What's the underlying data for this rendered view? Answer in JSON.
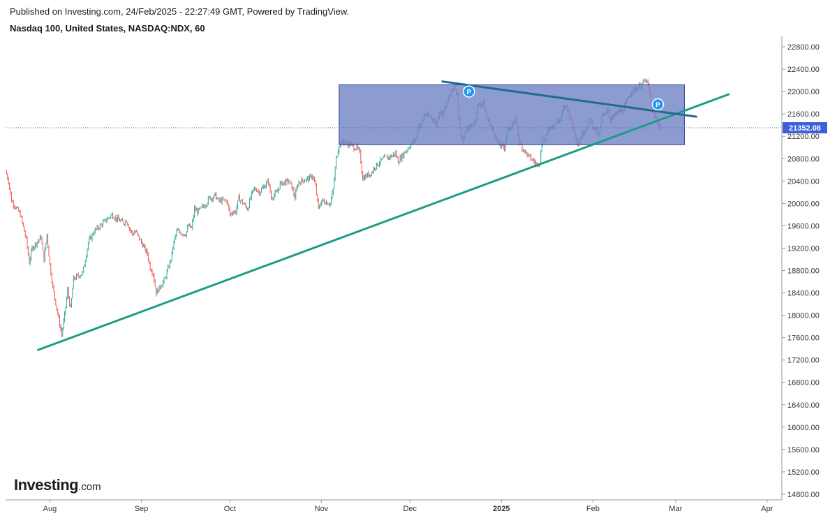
{
  "header": {
    "published": "Published on Investing.com, 24/Feb/2025 - 22:27:49 GMT, Powered by TradingView.",
    "symbol": "Nasdaq 100, United States, NASDAQ:NDX, 60"
  },
  "logo": {
    "main": "Investing",
    "suffix": ".com"
  },
  "colors": {
    "up": "#26a69a",
    "down": "#ef5350",
    "range_box_fill": "#6f83c6",
    "range_box_stroke": "#2d3f8e",
    "support_line": "#1a9b82",
    "resistance_line": "#1f6b8c",
    "price_label": "#3d5fd9",
    "pivot_marker": "#2196f3"
  },
  "chart_data": {
    "type": "candlestick",
    "title": "Nasdaq 100, United States, NASDAQ:NDX, 60",
    "y_ticks": [
      14800,
      15200,
      15600,
      16000,
      16400,
      16800,
      17200,
      17600,
      18000,
      18400,
      18800,
      19200,
      19600,
      20000,
      20400,
      20800,
      21200,
      21600,
      22000,
      22400,
      22800
    ],
    "y_tick_labels": [
      "14800.00",
      "15200.00",
      "15600.00",
      "16000.00",
      "16400.00",
      "16800.00",
      "17200.00",
      "17600.00",
      "18000.00",
      "18400.00",
      "18800.00",
      "19200.00",
      "19600.00",
      "20000.00",
      "20400.00",
      "20800.00",
      "21200.00",
      "21600.00",
      "22000.00",
      "22400.00",
      "22800.00"
    ],
    "ylim": [
      14700,
      22950
    ],
    "x_ticks": [
      {
        "label": "Aug",
        "date": "2024-08-01",
        "bold": false
      },
      {
        "label": "Sep",
        "date": "2024-09-01",
        "bold": false
      },
      {
        "label": "Oct",
        "date": "2024-10-01",
        "bold": false
      },
      {
        "label": "Nov",
        "date": "2024-11-01",
        "bold": false
      },
      {
        "label": "Dec",
        "date": "2024-12-01",
        "bold": false
      },
      {
        "label": "2025",
        "date": "2025-01-01",
        "bold": true
      },
      {
        "label": "Feb",
        "date": "2025-02-01",
        "bold": false
      },
      {
        "label": "Mar",
        "date": "2025-03-01",
        "bold": false
      },
      {
        "label": "Apr",
        "date": "2025-04-01",
        "bold": false
      }
    ],
    "xlim": [
      "2024-07-17",
      "2025-04-06"
    ],
    "last_price": 21352.08,
    "last_price_label": "21352.08",
    "price_path": [
      [
        "2024-07-17",
        20580
      ],
      [
        "2024-07-18",
        20400
      ],
      [
        "2024-07-19",
        20050
      ],
      [
        "2024-07-22",
        19800
      ],
      [
        "2024-07-24",
        19350
      ],
      [
        "2024-07-25",
        18950
      ],
      [
        "2024-07-26",
        19200
      ],
      [
        "2024-07-29",
        19400
      ],
      [
        "2024-07-30",
        19000
      ],
      [
        "2024-07-31",
        19450
      ],
      [
        "2024-08-01",
        18900
      ],
      [
        "2024-08-02",
        18500
      ],
      [
        "2024-08-05",
        17650
      ],
      [
        "2024-08-06",
        18000
      ],
      [
        "2024-08-07",
        18450
      ],
      [
        "2024-08-08",
        18100
      ],
      [
        "2024-08-09",
        18650
      ],
      [
        "2024-08-12",
        18750
      ],
      [
        "2024-08-13",
        19000
      ],
      [
        "2024-08-14",
        19300
      ],
      [
        "2024-08-16",
        19500
      ],
      [
        "2024-08-19",
        19650
      ],
      [
        "2024-08-20",
        19700
      ],
      [
        "2024-08-22",
        19800
      ],
      [
        "2024-08-23",
        19750
      ],
      [
        "2024-08-26",
        19650
      ],
      [
        "2024-08-27",
        19700
      ],
      [
        "2024-08-28",
        19550
      ],
      [
        "2024-08-29",
        19450
      ],
      [
        "2024-08-30",
        19500
      ],
      [
        "2024-09-03",
        19100
      ],
      [
        "2024-09-04",
        18850
      ],
      [
        "2024-09-05",
        18750
      ],
      [
        "2024-09-06",
        18400
      ],
      [
        "2024-09-09",
        18650
      ],
      [
        "2024-09-11",
        19000
      ],
      [
        "2024-09-12",
        19300
      ],
      [
        "2024-09-13",
        19500
      ],
      [
        "2024-09-16",
        19450
      ],
      [
        "2024-09-17",
        19600
      ],
      [
        "2024-09-18",
        19550
      ],
      [
        "2024-09-19",
        19900
      ],
      [
        "2024-09-20",
        19850
      ],
      [
        "2024-09-23",
        20000
      ],
      [
        "2024-09-24",
        20100
      ],
      [
        "2024-09-25",
        20100
      ],
      [
        "2024-09-26",
        20150
      ],
      [
        "2024-09-27",
        20050
      ],
      [
        "2024-09-30",
        20050
      ],
      [
        "2024-10-01",
        19800
      ],
      [
        "2024-10-02",
        19850
      ],
      [
        "2024-10-03",
        19850
      ],
      [
        "2024-10-04",
        20100
      ],
      [
        "2024-10-07",
        19900
      ],
      [
        "2024-10-08",
        20100
      ],
      [
        "2024-10-09",
        20250
      ],
      [
        "2024-10-10",
        20250
      ],
      [
        "2024-10-11",
        20200
      ],
      [
        "2024-10-14",
        20400
      ],
      [
        "2024-10-15",
        20100
      ],
      [
        "2024-10-16",
        20150
      ],
      [
        "2024-10-17",
        20200
      ],
      [
        "2024-10-18",
        20350
      ],
      [
        "2024-10-21",
        20400
      ],
      [
        "2024-10-22",
        20300
      ],
      [
        "2024-10-23",
        20100
      ],
      [
        "2024-10-24",
        20350
      ],
      [
        "2024-10-25",
        20400
      ],
      [
        "2024-10-28",
        20450
      ],
      [
        "2024-10-29",
        20500
      ],
      [
        "2024-10-30",
        20300
      ],
      [
        "2024-10-31",
        19900
      ],
      [
        "2024-11-01",
        20050
      ],
      [
        "2024-11-04",
        20000
      ],
      [
        "2024-11-05",
        20250
      ],
      [
        "2024-11-06",
        20800
      ],
      [
        "2024-11-07",
        21050
      ],
      [
        "2024-11-08",
        21100
      ],
      [
        "2024-11-11",
        21050
      ],
      [
        "2024-11-12",
        21000
      ],
      [
        "2024-11-13",
        21000
      ],
      [
        "2024-11-14",
        20900
      ],
      [
        "2024-11-15",
        20450
      ],
      [
        "2024-11-18",
        20550
      ],
      [
        "2024-11-19",
        20650
      ],
      [
        "2024-11-20",
        20700
      ],
      [
        "2024-11-21",
        20750
      ],
      [
        "2024-11-22",
        20800
      ],
      [
        "2024-11-25",
        20850
      ],
      [
        "2024-11-26",
        20900
      ],
      [
        "2024-11-27",
        20750
      ],
      [
        "2024-11-29",
        20900
      ],
      [
        "2024-12-02",
        21100
      ],
      [
        "2024-12-03",
        21150
      ],
      [
        "2024-12-04",
        21400
      ],
      [
        "2024-12-05",
        21400
      ],
      [
        "2024-12-06",
        21600
      ],
      [
        "2024-12-09",
        21500
      ],
      [
        "2024-12-10",
        21400
      ],
      [
        "2024-12-11",
        21650
      ],
      [
        "2024-12-12",
        21600
      ],
      [
        "2024-12-13",
        21750
      ],
      [
        "2024-12-16",
        22100
      ],
      [
        "2024-12-17",
        21950
      ],
      [
        "2024-12-18",
        21300
      ],
      [
        "2024-12-19",
        21100
      ],
      [
        "2024-12-20",
        21300
      ],
      [
        "2024-12-23",
        21450
      ],
      [
        "2024-12-24",
        21750
      ],
      [
        "2024-12-26",
        21800
      ],
      [
        "2024-12-27",
        21550
      ],
      [
        "2024-12-30",
        21200
      ],
      [
        "2024-12-31",
        21050
      ],
      [
        "2025-01-02",
        21000
      ],
      [
        "2025-01-03",
        21300
      ],
      [
        "2025-01-06",
        21500
      ],
      [
        "2025-01-07",
        21100
      ],
      [
        "2025-01-08",
        21000
      ],
      [
        "2025-01-10",
        20850
      ],
      [
        "2025-01-13",
        20700
      ],
      [
        "2025-01-14",
        20750
      ],
      [
        "2025-01-15",
        21200
      ],
      [
        "2025-01-16",
        21100
      ],
      [
        "2025-01-17",
        21350
      ],
      [
        "2025-01-21",
        21500
      ],
      [
        "2025-01-22",
        21700
      ],
      [
        "2025-01-23",
        21750
      ],
      [
        "2025-01-24",
        21600
      ],
      [
        "2025-01-27",
        21050
      ],
      [
        "2025-01-28",
        21200
      ],
      [
        "2025-01-29",
        21300
      ],
      [
        "2025-01-30",
        21400
      ],
      [
        "2025-01-31",
        21500
      ],
      [
        "2025-02-03",
        21200
      ],
      [
        "2025-02-04",
        21550
      ],
      [
        "2025-02-05",
        21600
      ],
      [
        "2025-02-06",
        21700
      ],
      [
        "2025-02-07",
        21500
      ],
      [
        "2025-02-10",
        21650
      ],
      [
        "2025-02-11",
        21650
      ],
      [
        "2025-02-12",
        21750
      ],
      [
        "2025-02-13",
        21900
      ],
      [
        "2025-02-14",
        22000
      ],
      [
        "2025-02-17",
        22100
      ],
      [
        "2025-02-18",
        22150
      ],
      [
        "2025-02-19",
        22200
      ],
      [
        "2025-02-20",
        22050
      ],
      [
        "2025-02-21",
        21650
      ],
      [
        "2025-02-24",
        21352
      ]
    ],
    "range_box": {
      "start": "2024-11-07",
      "end": "2025-03-04",
      "top": 22120,
      "bottom": 21050
    },
    "support_trendline": {
      "start": [
        "2024-07-28",
        17380
      ],
      "end": [
        "2025-03-19",
        21950
      ]
    },
    "resistance_trendline": {
      "start": [
        "2024-12-12",
        22180
      ],
      "end": [
        "2025-03-08",
        21550
      ]
    },
    "pivot_markers": [
      {
        "date": "2024-12-21",
        "value": 22000,
        "label": "P"
      },
      {
        "date": "2025-02-23",
        "value": 21770,
        "label": "P"
      }
    ]
  }
}
